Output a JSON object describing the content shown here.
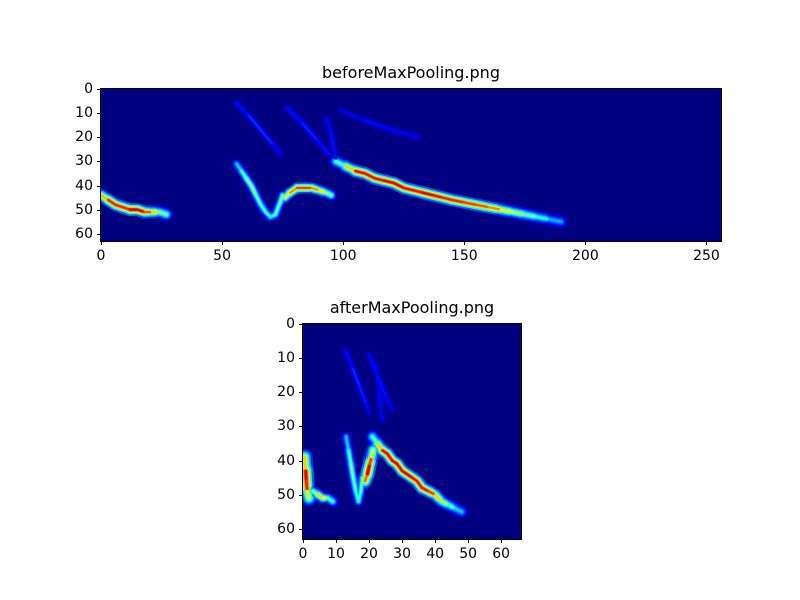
{
  "figure": {
    "background": "#ffffff"
  },
  "chart_data": [
    {
      "type": "heatmap",
      "title": "beforeMaxPooling.png",
      "xlabel": "",
      "ylabel": "",
      "xlim": [
        0,
        256
      ],
      "ylim": [
        0,
        63
      ],
      "y_inverted": true,
      "grid": false,
      "xticks": [
        0,
        50,
        100,
        150,
        200,
        250
      ],
      "yticks": [
        0,
        10,
        20,
        30,
        40,
        50,
        60
      ],
      "colormap": "jet",
      "background": "#000080",
      "strokes": [
        {
          "name": "faint-arc-1",
          "width": 2.5,
          "points": [
            [
              56,
              6,
              0.1
            ],
            [
              61,
              11,
              0.16
            ],
            [
              66,
              17,
              0.18
            ],
            [
              71,
              23,
              0.15
            ],
            [
              74,
              27,
              0.1
            ]
          ]
        },
        {
          "name": "faint-arc-2",
          "width": 2.5,
          "points": [
            [
              77,
              8,
              0.1
            ],
            [
              83,
              14,
              0.16
            ],
            [
              89,
              21,
              0.16
            ],
            [
              94,
              27,
              0.12
            ]
          ]
        },
        {
          "name": "faint-arc-3",
          "width": 2.5,
          "points": [
            [
              99,
              9,
              0.08
            ],
            [
              109,
              13,
              0.13
            ],
            [
              120,
              17,
              0.13
            ],
            [
              131,
              20,
              0.1
            ]
          ]
        },
        {
          "name": "faint-arc-4",
          "width": 2.5,
          "points": [
            [
              93,
              12,
              0.1
            ],
            [
              95,
              18,
              0.14
            ],
            [
              96,
              24,
              0.14
            ],
            [
              97,
              29,
              0.12
            ]
          ]
        },
        {
          "name": "left-curve",
          "width": 4,
          "points": [
            [
              0,
              44,
              0.6
            ],
            [
              3,
              46,
              0.8
            ],
            [
              6,
              48,
              0.9
            ],
            [
              9,
              49,
              0.8
            ],
            [
              12,
              50,
              0.9
            ],
            [
              15,
              50,
              0.95
            ],
            [
              18,
              51,
              0.85
            ],
            [
              21,
              51,
              0.75
            ],
            [
              24,
              51,
              0.6
            ],
            [
              27,
              52,
              0.4
            ]
          ]
        },
        {
          "name": "v-squiggle",
          "width": 3,
          "points": [
            [
              56,
              31,
              0.3
            ],
            [
              58,
              34,
              0.4
            ],
            [
              60,
              37,
              0.5
            ],
            [
              62,
              40,
              0.55
            ],
            [
              64,
              44,
              0.5
            ],
            [
              66,
              48,
              0.45
            ],
            [
              68,
              51,
              0.45
            ],
            [
              70,
              53,
              0.4
            ],
            [
              72,
              52,
              0.45
            ],
            [
              74,
              47,
              0.5
            ],
            [
              75,
              44,
              0.5
            ]
          ]
        },
        {
          "name": "hump",
          "width": 3.5,
          "points": [
            [
              76,
              45,
              0.55
            ],
            [
              78,
              43,
              0.7
            ],
            [
              81,
              41,
              0.8
            ],
            [
              84,
              41,
              0.85
            ],
            [
              87,
              41,
              0.8
            ],
            [
              90,
              42,
              0.7
            ],
            [
              93,
              43,
              0.6
            ],
            [
              95,
              44,
              0.45
            ]
          ]
        },
        {
          "name": "main-diagonal",
          "width": 4,
          "points": [
            [
              97,
              30,
              0.35
            ],
            [
              101,
              32,
              0.55
            ],
            [
              105,
              34,
              0.8
            ],
            [
              109,
              35,
              0.95
            ],
            [
              113,
              37,
              0.8
            ],
            [
              117,
              38,
              0.95
            ],
            [
              121,
              39,
              0.85
            ],
            [
              125,
              41,
              0.95
            ],
            [
              129,
              42,
              0.8
            ],
            [
              133,
              43,
              0.95
            ],
            [
              137,
              44,
              0.85
            ],
            [
              141,
              45,
              0.9
            ],
            [
              145,
              46,
              0.8
            ],
            [
              150,
              47,
              0.9
            ],
            [
              155,
              48,
              0.75
            ],
            [
              160,
              49,
              0.85
            ],
            [
              165,
              50,
              0.65
            ],
            [
              170,
              51,
              0.6
            ],
            [
              175,
              52,
              0.5
            ],
            [
              180,
              53,
              0.45
            ],
            [
              185,
              54,
              0.35
            ],
            [
              190,
              55,
              0.25
            ]
          ]
        }
      ]
    },
    {
      "type": "heatmap",
      "title": "afterMaxPooling.png",
      "xlabel": "",
      "ylabel": "",
      "xlim": [
        0,
        66
      ],
      "ylim": [
        0,
        63
      ],
      "y_inverted": true,
      "grid": false,
      "xticks": [
        0,
        10,
        20,
        30,
        40,
        50,
        60
      ],
      "yticks": [
        0,
        10,
        20,
        30,
        40,
        50,
        60
      ],
      "colormap": "jet",
      "background": "#000080",
      "strokes": [
        {
          "name": "faint-arc-1",
          "width": 2.5,
          "points": [
            [
              13,
              8,
              0.1
            ],
            [
              15,
              13,
              0.16
            ],
            [
              17,
              18,
              0.17
            ],
            [
              19,
              23,
              0.13
            ],
            [
              20,
              26,
              0.09
            ]
          ]
        },
        {
          "name": "faint-arc-2",
          "width": 2.5,
          "points": [
            [
              20,
              9,
              0.1
            ],
            [
              22.5,
              15,
              0.15
            ],
            [
              25,
              21,
              0.13
            ],
            [
              27,
              25,
              0.1
            ]
          ]
        },
        {
          "name": "faint-arc-3",
          "width": 2.5,
          "points": [
            [
              22,
              12,
              0.1
            ],
            [
              23,
              18,
              0.13
            ],
            [
              23.5,
              24,
              0.12
            ],
            [
              24,
              28,
              0.1
            ]
          ]
        },
        {
          "name": "left-bar",
          "width": 5,
          "points": [
            [
              0.5,
              39,
              0.5
            ],
            [
              0.8,
              43,
              0.85
            ],
            [
              1,
              46,
              0.95
            ],
            [
              1.3,
              49,
              0.75
            ],
            [
              1.8,
              51,
              0.45
            ]
          ]
        },
        {
          "name": "small-curve",
          "width": 3.5,
          "points": [
            [
              3,
              49,
              0.4
            ],
            [
              4.5,
              50,
              0.65
            ],
            [
              6,
              51,
              0.7
            ],
            [
              7.5,
              51,
              0.55
            ],
            [
              9,
              52,
              0.35
            ]
          ]
        },
        {
          "name": "v-squiggle",
          "width": 3,
          "points": [
            [
              13,
              33,
              0.28
            ],
            [
              13.8,
              37,
              0.4
            ],
            [
              14.5,
              41,
              0.5
            ],
            [
              15.2,
              45,
              0.5
            ],
            [
              16,
              49,
              0.45
            ],
            [
              16.8,
              52,
              0.42
            ],
            [
              17.5,
              49,
              0.45
            ],
            [
              18,
              45,
              0.5
            ]
          ]
        },
        {
          "name": "blob",
          "width": 4.5,
          "points": [
            [
              18.8,
              46,
              0.65
            ],
            [
              19.5,
              44,
              0.9
            ],
            [
              20.2,
              41,
              0.95
            ],
            [
              20.8,
              39,
              0.7
            ],
            [
              21.2,
              37,
              0.5
            ]
          ]
        },
        {
          "name": "main-diagonal",
          "width": 4,
          "points": [
            [
              21,
              33,
              0.35
            ],
            [
              22.5,
              35,
              0.55
            ],
            [
              24,
              37,
              0.8
            ],
            [
              25.5,
              38,
              0.95
            ],
            [
              27,
              40,
              0.85
            ],
            [
              28.5,
              41,
              0.95
            ],
            [
              30,
              43,
              0.85
            ],
            [
              31.5,
              44,
              0.95
            ],
            [
              33,
              45,
              0.85
            ],
            [
              34.5,
              46,
              0.9
            ],
            [
              36,
              48,
              0.85
            ],
            [
              38,
              49,
              0.9
            ],
            [
              40,
              50,
              0.75
            ],
            [
              42,
              52,
              0.6
            ],
            [
              44,
              53,
              0.5
            ],
            [
              46,
              54,
              0.4
            ],
            [
              48,
              55,
              0.28
            ]
          ]
        }
      ]
    }
  ]
}
